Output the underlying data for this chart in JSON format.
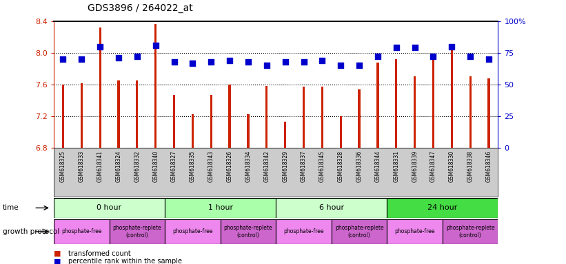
{
  "title": "GDS3896 / 264022_at",
  "samples": [
    "GSM618325",
    "GSM618333",
    "GSM618341",
    "GSM618324",
    "GSM618332",
    "GSM618340",
    "GSM618327",
    "GSM618335",
    "GSM618343",
    "GSM618326",
    "GSM618334",
    "GSM618342",
    "GSM618329",
    "GSM618337",
    "GSM618345",
    "GSM618328",
    "GSM618336",
    "GSM618344",
    "GSM618331",
    "GSM618339",
    "GSM618347",
    "GSM618330",
    "GSM618338",
    "GSM618346"
  ],
  "transformed_count": [
    7.6,
    7.62,
    8.32,
    7.65,
    7.65,
    8.36,
    7.47,
    7.23,
    7.47,
    7.6,
    7.23,
    7.58,
    7.13,
    7.57,
    7.57,
    7.2,
    7.54,
    7.88,
    7.92,
    7.7,
    7.91,
    8.05,
    7.7,
    7.68
  ],
  "percentile_rank": [
    70,
    70,
    80,
    71,
    72,
    81,
    68,
    67,
    68,
    69,
    68,
    65,
    68,
    68,
    69,
    65,
    65,
    72,
    79,
    79,
    72,
    80,
    72,
    70
  ],
  "ylim_left": [
    6.8,
    8.4
  ],
  "ylim_right": [
    0,
    100
  ],
  "yticks_left": [
    6.8,
    7.2,
    7.6,
    8.0,
    8.4
  ],
  "yticks_right": [
    0,
    25,
    50,
    75,
    100
  ],
  "ytick_labels_right": [
    "0",
    "25",
    "50",
    "75",
    "100%"
  ],
  "time_groups": [
    {
      "label": "0 hour",
      "start": 0,
      "end": 6,
      "color": "#CCFFCC"
    },
    {
      "label": "1 hour",
      "start": 6,
      "end": 12,
      "color": "#AAFFAA"
    },
    {
      "label": "6 hour",
      "start": 12,
      "end": 18,
      "color": "#CCFFCC"
    },
    {
      "label": "24 hour",
      "start": 18,
      "end": 24,
      "color": "#44DD44"
    }
  ],
  "protocol_groups": [
    {
      "label": "phosphate-free",
      "start": 0,
      "end": 3,
      "color": "#EE88EE"
    },
    {
      "label": "phosphate-replete\n(control)",
      "start": 3,
      "end": 6,
      "color": "#CC66CC"
    },
    {
      "label": "phosphate-free",
      "start": 6,
      "end": 9,
      "color": "#EE88EE"
    },
    {
      "label": "phosphate-replete\n(control)",
      "start": 9,
      "end": 12,
      "color": "#CC66CC"
    },
    {
      "label": "phosphate-free",
      "start": 12,
      "end": 15,
      "color": "#EE88EE"
    },
    {
      "label": "phosphate-replete\n(control)",
      "start": 15,
      "end": 18,
      "color": "#CC66CC"
    },
    {
      "label": "phosphate-free",
      "start": 18,
      "end": 21,
      "color": "#EE88EE"
    },
    {
      "label": "phosphate-replete\n(control)",
      "start": 21,
      "end": 24,
      "color": "#CC66CC"
    }
  ],
  "bar_color": "#CC2200",
  "dot_color": "#0000CC",
  "bar_width": 0.12,
  "dot_size": 30,
  "background_color": "#FFFFFF",
  "xticklabel_bg": "#CCCCCC",
  "grid_color": "#000000",
  "left_axis_color": "#CC2200",
  "right_axis_color": "#0000CC",
  "hgrid_values": [
    7.2,
    7.6,
    8.0
  ]
}
